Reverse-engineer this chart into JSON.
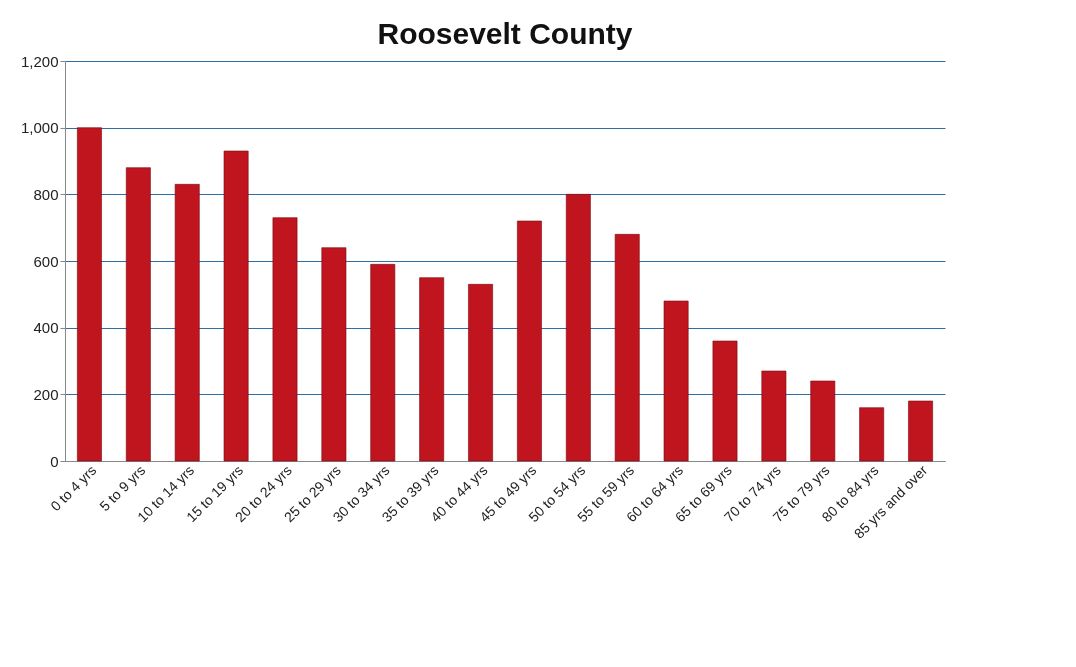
{
  "chart_data": {
    "type": "bar",
    "title": "Roosevelt County",
    "categories": [
      "0 to 4 yrs",
      "5 to 9 yrs",
      "10 to 14 yrs",
      "15 to 19 yrs",
      "20 to 24 yrs",
      "25 to 29 yrs",
      "30 to 34 yrs",
      "35 to 39 yrs",
      "40 to 44 yrs",
      "45 to 49 yrs",
      "50 to 54 yrs",
      "55 to 59 yrs",
      "60 to 64 yrs",
      "65 to 69 yrs",
      "70 to 74 yrs",
      "75 to 79 yrs",
      "80 to 84 yrs",
      "85 yrs and over"
    ],
    "values": [
      1000,
      880,
      830,
      930,
      730,
      640,
      590,
      550,
      530,
      720,
      800,
      680,
      480,
      360,
      270,
      240,
      160,
      180
    ],
    "color": "#c0141e",
    "ylim": [
      0,
      1200
    ],
    "yticks": [
      {
        "value": 0,
        "label": "0"
      },
      {
        "value": 200,
        "label": "200"
      },
      {
        "value": 400,
        "label": "400"
      },
      {
        "value": 600,
        "label": "600"
      },
      {
        "value": 800,
        "label": "800"
      },
      {
        "value": 1000,
        "label": "1,000"
      },
      {
        "value": 1200,
        "label": "1,200"
      }
    ],
    "grid": "y"
  }
}
